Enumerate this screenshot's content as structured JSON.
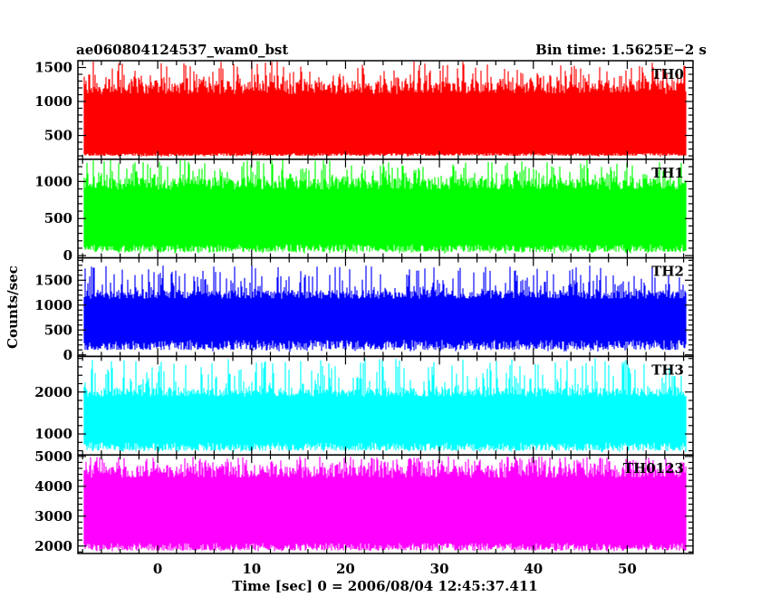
{
  "header": {
    "title": "ae060804124537_wam0_bst",
    "bin_time": "Bin time: 1.5625E−2 s"
  },
  "chart_data": {
    "type": "line",
    "xlabel": "Time [sec] 0 = 2006/08/04 12:45:37.411",
    "ylabel": "Counts/sec",
    "xlim": [
      -8.5,
      57.0
    ],
    "x_ticks": [
      0,
      10,
      20,
      30,
      40,
      50
    ],
    "data_xrange": [
      -7.8,
      56.2
    ],
    "bin_time": 0.015625,
    "panels": [
      {
        "name": "TH0",
        "color": "#ff0000",
        "ylim": [
          150,
          1600
        ],
        "y_ticks": [
          500,
          1000,
          1500
        ],
        "base": 200,
        "mean": 760,
        "band_low": 240,
        "band_high": 1300,
        "peak": 1590
      },
      {
        "name": "TH1",
        "color": "#00ff00",
        "ylim": [
          -30,
          1300
        ],
        "y_ticks": [
          0,
          500,
          1000
        ],
        "base": 50,
        "mean": 600,
        "band_low": 150,
        "band_high": 1050,
        "peak": 1290
      },
      {
        "name": "TH2",
        "color": "#0000ff",
        "ylim": [
          -30,
          1950
        ],
        "y_ticks": [
          0,
          500,
          1000,
          1500
        ],
        "base": 100,
        "mean": 800,
        "band_low": 300,
        "band_high": 1300,
        "peak": 1800
      },
      {
        "name": "TH3",
        "color": "#00ffff",
        "ylim": [
          500,
          2850
        ],
        "y_ticks": [
          1000,
          2000
        ],
        "base": 600,
        "mean": 1500,
        "band_low": 800,
        "band_high": 2100,
        "peak": 2800
      },
      {
        "name": "TH0123",
        "color": "#ff00ff",
        "ylim": [
          1750,
          5050
        ],
        "y_ticks": [
          2000,
          3000,
          4000,
          5000
        ],
        "base": 1850,
        "mean": 3500,
        "band_low": 2100,
        "band_high": 4700,
        "peak": 5000
      }
    ]
  }
}
